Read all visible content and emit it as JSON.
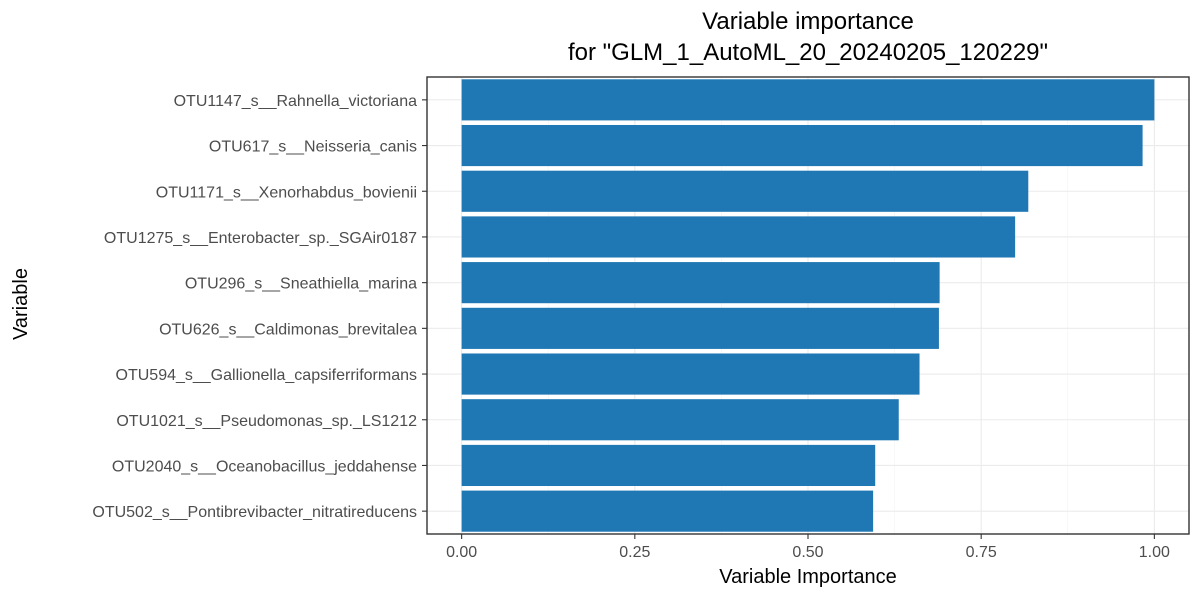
{
  "chart_data": {
    "type": "bar",
    "orientation": "horizontal",
    "title": "Variable importance",
    "subtitle": "for \"GLM_1_AutoML_20_20240205_120229\"",
    "xlabel": "Variable Importance",
    "ylabel": "Variable",
    "xlim": [
      -0.05,
      1.05
    ],
    "xticks": [
      0.0,
      0.25,
      0.5,
      0.75,
      1.0
    ],
    "xtick_labels": [
      "0.00",
      "0.25",
      "0.50",
      "0.75",
      "1.00"
    ],
    "categories": [
      "OTU1147_s__Rahnella_victoriana",
      "OTU617_s__Neisseria_canis",
      "OTU1171_s__Xenorhabdus_bovienii",
      "OTU1275_s__Enterobacter_sp._SGAir0187",
      "OTU296_s__Sneathiella_marina",
      "OTU626_s__Caldimonas_brevitalea",
      "OTU594_s__Gallionella_capsiferriformans",
      "OTU1021_s__Pseudomonas_sp._LS1212",
      "OTU2040_s__Oceanobacillus_jeddahense",
      "OTU502_s__Pontibrevibacter_nitratireducens"
    ],
    "values": [
      1.0,
      0.983,
      0.818,
      0.799,
      0.69,
      0.689,
      0.661,
      0.631,
      0.597,
      0.594
    ],
    "bar_color": "#1f77b4",
    "grid": true,
    "legend": "none"
  }
}
